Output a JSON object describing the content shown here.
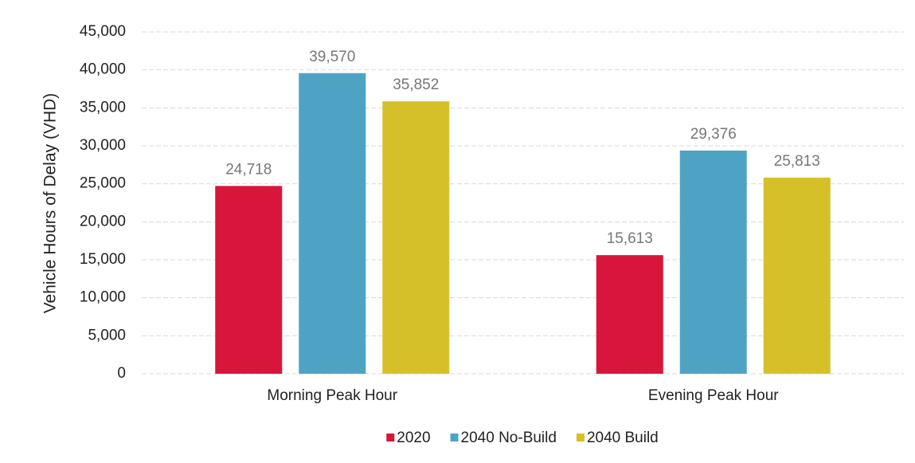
{
  "chart_data": {
    "type": "bar",
    "y_label": "Vehicle Hours of Delay  (VHD)",
    "categories": [
      "Morning Peak Hour",
      "Evening Peak Hour"
    ],
    "series": [
      {
        "name": "2020",
        "color": "#d8163c",
        "values": [
          24718,
          15613
        ],
        "value_labels": [
          "24,718",
          "15,613"
        ]
      },
      {
        "name": "2040 No-Build",
        "color": "#4ea3c5",
        "values": [
          39570,
          29376
        ],
        "value_labels": [
          "39,570",
          "29,376"
        ]
      },
      {
        "name": "2040 Build",
        "color": "#d5c02a",
        "values": [
          35852,
          25813
        ],
        "value_labels": [
          "35,852",
          "25,813"
        ]
      }
    ],
    "ylim": [
      0,
      45000
    ],
    "yticks": [
      0,
      {
        "value": 5000,
        "label": "5,000"
      },
      {
        "value": 10000,
        "label": "10,000"
      },
      {
        "value": 15000,
        "label": "15,000"
      },
      {
        "value": 20000,
        "label": "20,000"
      },
      {
        "value": 25000,
        "label": "25,000"
      },
      {
        "value": 30000,
        "label": "30,000"
      },
      {
        "value": 35000,
        "label": "35,000"
      },
      {
        "value": 40000,
        "label": "40,000"
      },
      {
        "value": 45000,
        "label": "45,000"
      }
    ],
    "grid": true,
    "legend": "bottom"
  }
}
